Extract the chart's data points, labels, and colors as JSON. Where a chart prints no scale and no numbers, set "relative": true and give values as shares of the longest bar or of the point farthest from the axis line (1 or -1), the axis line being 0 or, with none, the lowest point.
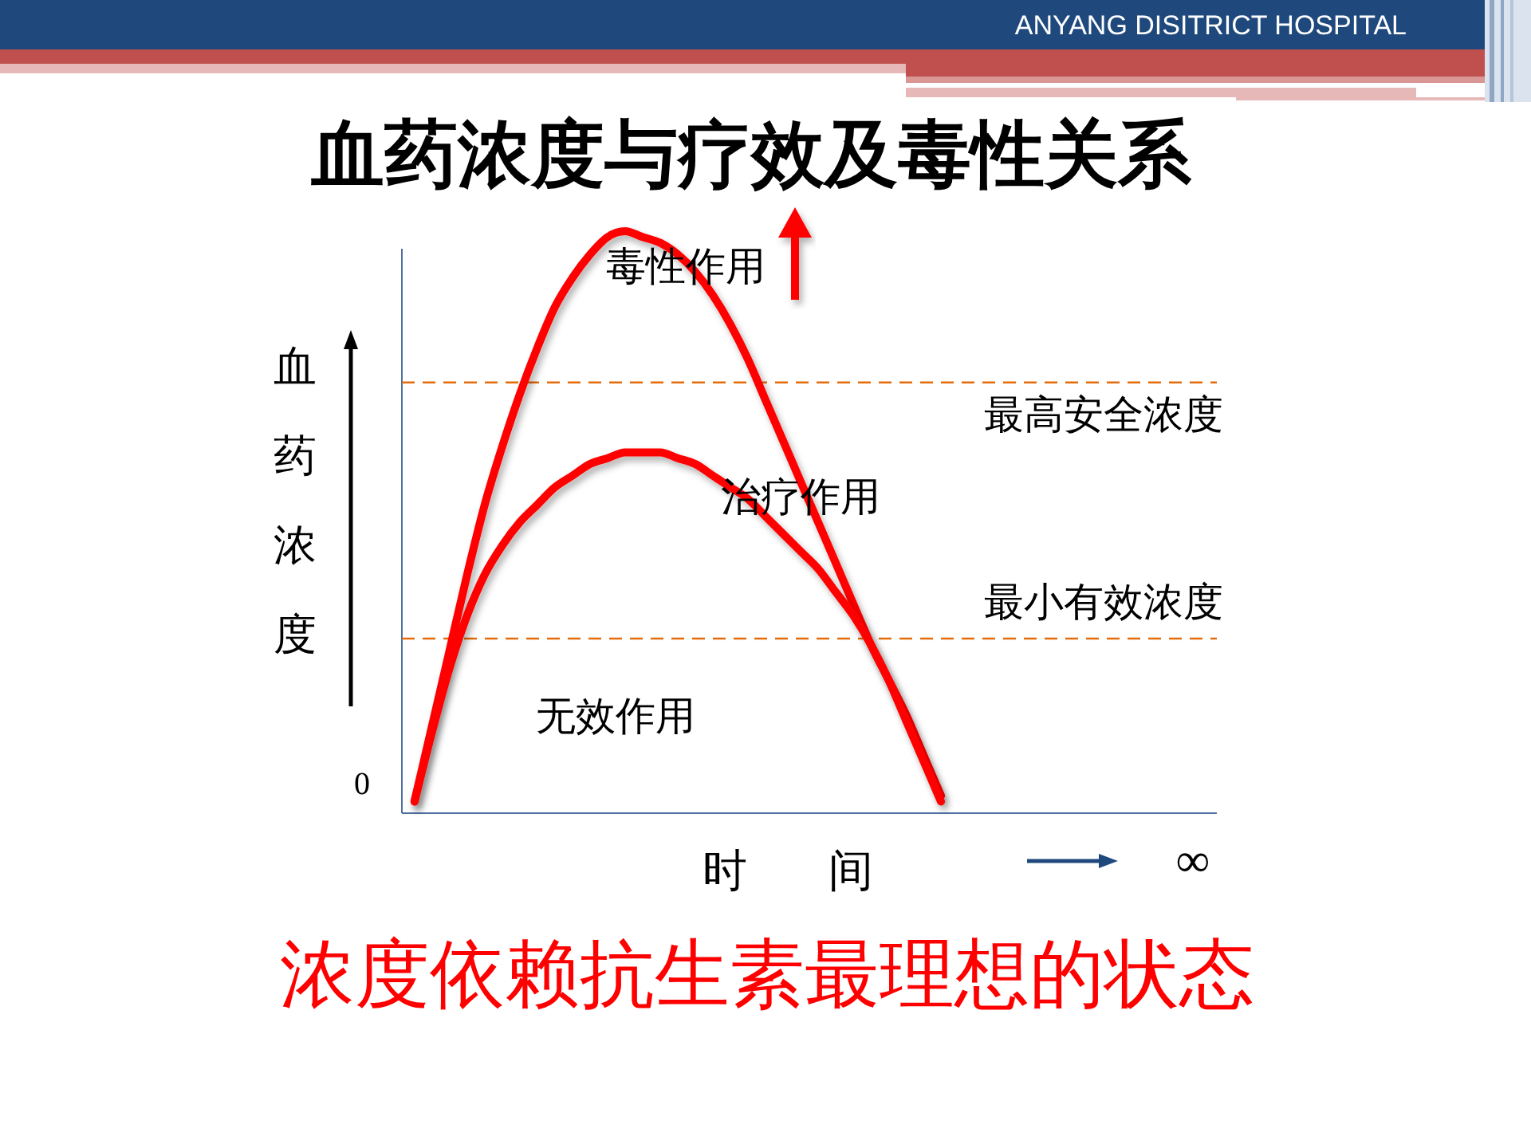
{
  "chart_data": {
    "type": "line",
    "title": "血药浓度与疗效及毒性关系",
    "xlabel": "时 间",
    "ylabel": "血药浓度",
    "relative": true,
    "categories": [
      null,
      null,
      null,
      null,
      null,
      null,
      null,
      null,
      null,
      null,
      null,
      null,
      null,
      null,
      null,
      null,
      null,
      null,
      null,
      null,
      null,
      null,
      null,
      null,
      null,
      null,
      null,
      null,
      null,
      null,
      null,
      null,
      null,
      null,
      null,
      null,
      null,
      null,
      null,
      null,
      null,
      null,
      null,
      null,
      null,
      null
    ],
    "series": [
      {
        "name": "毒性作用",
        "color": "#ff0000",
        "values": [
          0.02,
          0.15,
          0.28,
          0.41,
          0.53,
          0.63,
          0.72,
          0.8,
          0.87,
          0.92,
          0.96,
          0.99,
          1.0,
          0.99,
          0.98,
          0.96,
          0.93,
          0.89,
          0.84,
          0.78,
          0.71,
          0.64,
          0.57,
          0.5,
          0.43,
          0.36,
          0.29,
          0.23,
          0.17,
          0.1,
          0.03,
          null,
          null,
          null,
          null,
          null,
          null,
          null,
          null,
          null,
          null,
          null,
          null,
          null,
          null,
          null
        ]
      },
      {
        "name": "治疗作用",
        "color": "#ff0000",
        "values": [
          0.02,
          0.14,
          0.25,
          0.34,
          0.41,
          0.46,
          0.5,
          0.53,
          0.56,
          0.58,
          0.6,
          0.61,
          0.62,
          0.62,
          0.62,
          0.61,
          0.6,
          0.58,
          0.56,
          0.54,
          0.51,
          0.48,
          0.45,
          0.42,
          0.38,
          0.34,
          0.29,
          0.23,
          0.16,
          0.09,
          0.02,
          null,
          null,
          null,
          null,
          null,
          null,
          null,
          null,
          null,
          null,
          null,
          null,
          null,
          null,
          null
        ]
      }
    ],
    "ref_lines": [
      {
        "axis": "y",
        "value": 0.74,
        "label": "最高安全浓度",
        "color": "#e46c0a",
        "line_style": "dashed"
      },
      {
        "axis": "y",
        "value": 0.3,
        "label": "最小有效浓度",
        "color": "#e46c0a",
        "line_style": "dashed"
      }
    ],
    "annotations": [
      "0",
      "无效作用",
      "∞",
      "浓度依赖抗生素最理想的状态",
      "ANYANG DISITRICT HOSPITAL"
    ]
  }
}
